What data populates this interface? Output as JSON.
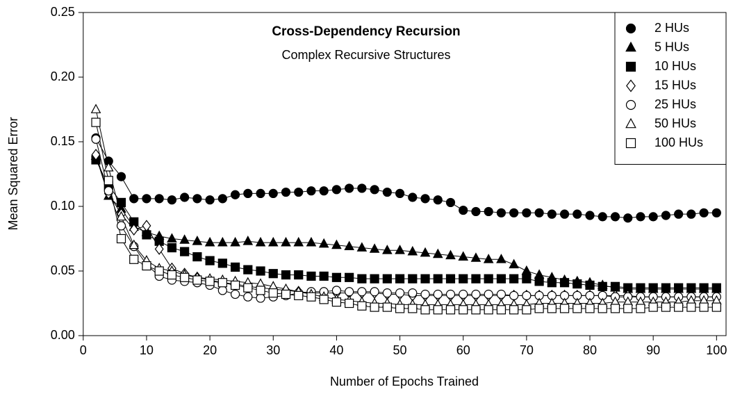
{
  "chart_data": {
    "type": "line",
    "title": "Cross-Dependency Recursion",
    "subtitle": "Complex Recursive Structures",
    "xlabel": "Number of Epochs Trained",
    "ylabel": "Mean Squared Error",
    "x": [
      2,
      4,
      6,
      8,
      10,
      12,
      14,
      16,
      18,
      20,
      22,
      24,
      26,
      28,
      30,
      32,
      34,
      36,
      38,
      40,
      42,
      44,
      46,
      48,
      50,
      52,
      54,
      56,
      58,
      60,
      62,
      64,
      66,
      68,
      70,
      72,
      74,
      76,
      78,
      80,
      82,
      84,
      86,
      88,
      90,
      92,
      94,
      96,
      98,
      100
    ],
    "series": [
      {
        "name": "2 HUs",
        "color": "#000000",
        "marker": "circle",
        "filled": true,
        "values": [
          0.153,
          0.135,
          0.123,
          0.106,
          0.106,
          0.106,
          0.105,
          0.107,
          0.106,
          0.105,
          0.106,
          0.109,
          0.11,
          0.11,
          0.11,
          0.111,
          0.111,
          0.112,
          0.112,
          0.113,
          0.114,
          0.114,
          0.113,
          0.111,
          0.11,
          0.107,
          0.106,
          0.105,
          0.103,
          0.097,
          0.096,
          0.096,
          0.095,
          0.095,
          0.095,
          0.095,
          0.094,
          0.094,
          0.094,
          0.093,
          0.092,
          0.092,
          0.091,
          0.092,
          0.092,
          0.093,
          0.094,
          0.094,
          0.095,
          0.095
        ]
      },
      {
        "name": "5 HUs",
        "color": "#000000",
        "marker": "triangle",
        "filled": true,
        "values": [
          0.139,
          0.108,
          0.098,
          0.084,
          0.08,
          0.077,
          0.075,
          0.074,
          0.073,
          0.072,
          0.072,
          0.072,
          0.073,
          0.072,
          0.072,
          0.072,
          0.072,
          0.072,
          0.071,
          0.07,
          0.069,
          0.068,
          0.067,
          0.066,
          0.066,
          0.065,
          0.064,
          0.063,
          0.062,
          0.061,
          0.06,
          0.059,
          0.059,
          0.055,
          0.05,
          0.047,
          0.045,
          0.043,
          0.042,
          0.041,
          0.039,
          0.037,
          0.036,
          0.036,
          0.036,
          0.036,
          0.036,
          0.036,
          0.036,
          0.036
        ]
      },
      {
        "name": "10 HUs",
        "color": "#000000",
        "marker": "square",
        "filled": true,
        "values": [
          0.136,
          0.116,
          0.103,
          0.088,
          0.078,
          0.073,
          0.068,
          0.065,
          0.061,
          0.058,
          0.056,
          0.053,
          0.051,
          0.05,
          0.048,
          0.047,
          0.047,
          0.046,
          0.046,
          0.045,
          0.045,
          0.044,
          0.044,
          0.044,
          0.044,
          0.044,
          0.044,
          0.044,
          0.044,
          0.044,
          0.044,
          0.044,
          0.044,
          0.044,
          0.044,
          0.042,
          0.041,
          0.041,
          0.04,
          0.039,
          0.038,
          0.038,
          0.037,
          0.037,
          0.037,
          0.037,
          0.037,
          0.037,
          0.037,
          0.037
        ]
      },
      {
        "name": "15 HUs",
        "color": "#000000",
        "marker": "diamond",
        "filled": false,
        "values": [
          0.14,
          0.11,
          0.094,
          0.082,
          0.085,
          0.067,
          0.052,
          0.048,
          0.045,
          0.043,
          0.041,
          0.04,
          0.038,
          0.037,
          0.036,
          0.035,
          0.034,
          0.033,
          0.033,
          0.033,
          0.033,
          0.033,
          0.033,
          0.032,
          0.032,
          0.031,
          0.031,
          0.031,
          0.031,
          0.031,
          0.031,
          0.031,
          0.031,
          0.031,
          0.031,
          0.031,
          0.031,
          0.031,
          0.031,
          0.031,
          0.031,
          0.031,
          0.031,
          0.03,
          0.03,
          0.03,
          0.03,
          0.03,
          0.03,
          0.03
        ]
      },
      {
        "name": "25 HUs",
        "color": "#000000",
        "marker": "circle",
        "filled": false,
        "values": [
          0.152,
          0.112,
          0.085,
          0.069,
          0.055,
          0.046,
          0.043,
          0.042,
          0.041,
          0.039,
          0.035,
          0.032,
          0.03,
          0.029,
          0.03,
          0.031,
          0.033,
          0.034,
          0.034,
          0.035,
          0.034,
          0.034,
          0.034,
          0.033,
          0.033,
          0.033,
          0.032,
          0.032,
          0.032,
          0.032,
          0.032,
          0.032,
          0.032,
          0.031,
          0.031,
          0.031,
          0.031,
          0.031,
          0.031,
          0.031,
          0.031,
          0.03,
          0.03,
          0.03,
          0.03,
          0.03,
          0.03,
          0.03,
          0.03,
          0.03
        ]
      },
      {
        "name": "50 HUs",
        "color": "#000000",
        "marker": "triangle",
        "filled": false,
        "values": [
          0.175,
          0.13,
          0.092,
          0.07,
          0.058,
          0.052,
          0.05,
          0.047,
          0.045,
          0.044,
          0.043,
          0.042,
          0.041,
          0.04,
          0.038,
          0.036,
          0.034,
          0.032,
          0.03,
          0.028,
          0.027,
          0.026,
          0.025,
          0.025,
          0.024,
          0.024,
          0.024,
          0.024,
          0.024,
          0.024,
          0.024,
          0.024,
          0.024,
          0.024,
          0.024,
          0.025,
          0.025,
          0.025,
          0.025,
          0.025,
          0.025,
          0.026,
          0.026,
          0.026,
          0.026,
          0.026,
          0.026,
          0.027,
          0.027,
          0.027
        ]
      },
      {
        "name": "100 HUs",
        "color": "#000000",
        "marker": "square",
        "filled": false,
        "values": [
          0.165,
          0.12,
          0.075,
          0.059,
          0.054,
          0.05,
          0.047,
          0.045,
          0.043,
          0.042,
          0.041,
          0.039,
          0.037,
          0.035,
          0.033,
          0.032,
          0.031,
          0.03,
          0.028,
          0.026,
          0.025,
          0.023,
          0.022,
          0.022,
          0.021,
          0.021,
          0.02,
          0.02,
          0.02,
          0.02,
          0.02,
          0.02,
          0.02,
          0.02,
          0.02,
          0.021,
          0.021,
          0.021,
          0.021,
          0.021,
          0.021,
          0.021,
          0.021,
          0.021,
          0.022,
          0.022,
          0.022,
          0.022,
          0.022,
          0.022
        ]
      }
    ],
    "xlim": [
      0,
      101.5
    ],
    "xticks": [
      0,
      10,
      20,
      30,
      40,
      50,
      60,
      70,
      80,
      90,
      100
    ],
    "ylim": [
      0,
      0.25
    ],
    "yticks": [
      {
        "value": 0,
        "label": "0.00"
      },
      {
        "value": 0.05,
        "label": "0.05"
      },
      {
        "value": 0.1,
        "label": "0.10"
      },
      {
        "value": 0.15,
        "label": "0.15"
      },
      {
        "value": 0.2,
        "label": "0.20"
      },
      {
        "value": 0.25,
        "label": "0.25"
      }
    ],
    "legend": "upper right"
  }
}
